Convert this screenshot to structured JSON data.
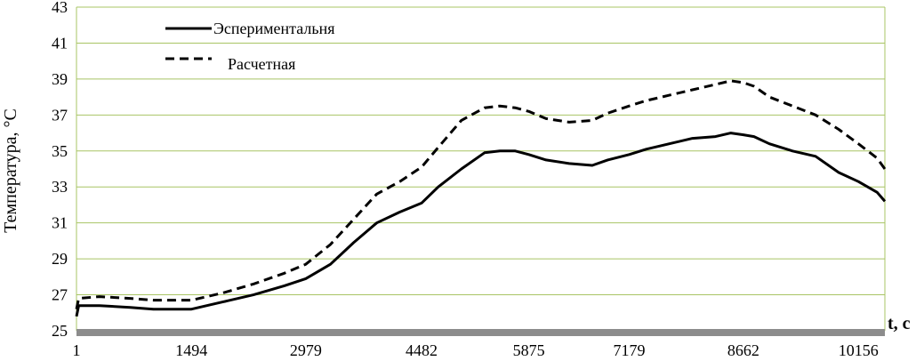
{
  "chart_data": {
    "type": "line",
    "xlabel": "t, c",
    "ylabel": "Температура, °С",
    "ylim": [
      25,
      43
    ],
    "yticks": [
      25,
      27,
      29,
      31,
      33,
      35,
      37,
      39,
      41,
      43
    ],
    "xlim": [
      1,
      10500
    ],
    "xticks": [
      "1",
      "1494",
      "2979",
      "4482",
      "5875",
      "7179",
      "8662",
      "10156"
    ],
    "grid": true,
    "legend_placement": "top-left",
    "series": [
      {
        "name": "Эспериментальня",
        "style": "solid",
        "color": "#000000",
        "x": [
          1,
          30,
          300,
          700,
          1000,
          1494,
          1900,
          2300,
          2700,
          2979,
          3300,
          3600,
          3900,
          4200,
          4482,
          4700,
          5000,
          5300,
          5500,
          5700,
          5875,
          6100,
          6400,
          6700,
          6900,
          7179,
          7400,
          7700,
          8000,
          8300,
          8500,
          8662,
          8800,
          9000,
          9300,
          9600,
          9900,
          10156,
          10400,
          10500
        ],
        "y": [
          25.8,
          26.4,
          26.4,
          26.3,
          26.2,
          26.2,
          26.6,
          27.0,
          27.5,
          27.9,
          28.7,
          29.9,
          31.0,
          31.6,
          32.1,
          33.0,
          34.0,
          34.9,
          35.0,
          35.0,
          34.8,
          34.5,
          34.3,
          34.2,
          34.5,
          34.8,
          35.1,
          35.4,
          35.7,
          35.8,
          36.0,
          35.9,
          35.8,
          35.4,
          35.0,
          34.7,
          33.8,
          33.3,
          32.7,
          32.2
        ]
      },
      {
        "name": "Расчетная",
        "style": "dashed",
        "color": "#000000",
        "x": [
          1,
          30,
          300,
          700,
          1000,
          1494,
          1900,
          2300,
          2700,
          2979,
          3300,
          3600,
          3900,
          4200,
          4482,
          4700,
          5000,
          5300,
          5500,
          5700,
          5875,
          6100,
          6400,
          6700,
          6900,
          7179,
          7400,
          7700,
          8000,
          8300,
          8500,
          8662,
          8800,
          9000,
          9300,
          9600,
          9900,
          10156,
          10400,
          10500
        ],
        "y": [
          26.2,
          26.8,
          26.9,
          26.8,
          26.7,
          26.7,
          27.1,
          27.6,
          28.2,
          28.7,
          29.8,
          31.2,
          32.6,
          33.3,
          34.1,
          35.2,
          36.7,
          37.4,
          37.5,
          37.4,
          37.2,
          36.8,
          36.6,
          36.7,
          37.1,
          37.5,
          37.8,
          38.1,
          38.4,
          38.7,
          38.9,
          38.8,
          38.6,
          38.0,
          37.5,
          37.0,
          36.2,
          35.4,
          34.6,
          34.0
        ]
      }
    ]
  }
}
